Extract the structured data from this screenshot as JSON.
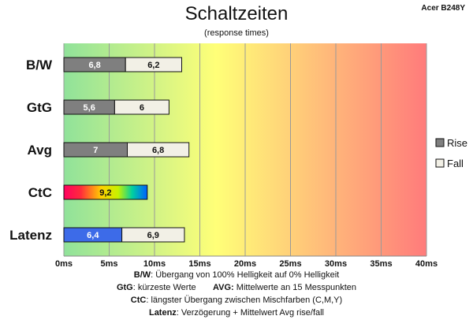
{
  "header": {
    "title": "Schaltzeiten",
    "subtitle": "(response times)",
    "model": "Acer B248Y"
  },
  "footer": {
    "line1_key": "B/W",
    "line1_text": ":  Übergang von 100% Helligkeit auf 0% Helligkeit",
    "line2_key1": "GtG",
    "line2_text1": ": kürzeste  Werte",
    "line2_key2": "AVG:",
    "line2_text2": " Mittelwerte  an 15 Messpunkten",
    "line3_key": "CtC",
    "line3_text": ": längster Übergang  zwischen Mischfarben (C,M,Y)",
    "line4_key": "Latenz",
    "line4_text": ": Verzögerung  + Mittelwert Avg rise/fall"
  },
  "colors": {
    "rise": "#7f7f7f",
    "fall": "#f2f0e6",
    "latenz_rise": "#3d6be8",
    "gradient": [
      "#90e29a",
      "#ffff78",
      "#ff7b7b"
    ]
  },
  "chart_data": {
    "type": "bar",
    "orientation": "horizontal",
    "stacked": true,
    "categories": [
      "B/W",
      "GtG",
      "Avg",
      "CtC",
      "Latenz"
    ],
    "series": [
      {
        "name": "Rise",
        "values": [
          6.8,
          5.6,
          7,
          9.2,
          6.4
        ],
        "labels": [
          "6,8",
          "5,6",
          "7",
          "9,2",
          "6,4"
        ]
      },
      {
        "name": "Fall",
        "values": [
          6.2,
          6,
          6.8,
          null,
          6.9
        ],
        "labels": [
          "6,2",
          "6",
          "6,8",
          "",
          "6,9"
        ]
      }
    ],
    "xlim": [
      0,
      40
    ],
    "xticks": [
      0,
      5,
      10,
      15,
      20,
      25,
      30,
      35,
      40
    ],
    "xtick_labels": [
      "0ms",
      "5ms",
      "10ms",
      "15ms",
      "20ms",
      "25ms",
      "30ms",
      "35ms",
      "40ms"
    ],
    "legend_position": "right",
    "grid": true
  }
}
